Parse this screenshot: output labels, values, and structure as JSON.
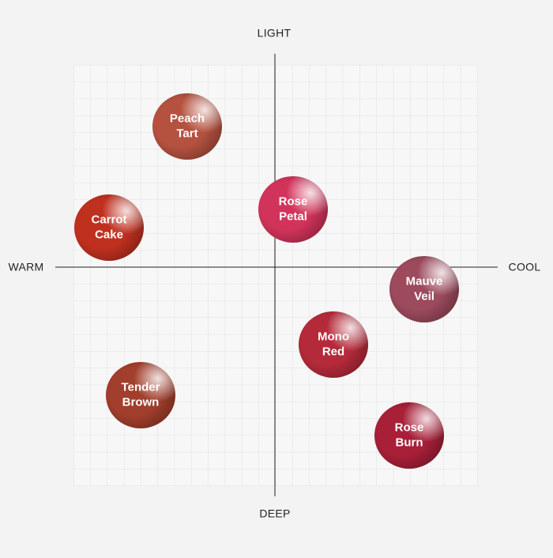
{
  "axes": {
    "top": "LIGHT",
    "bottom": "DEEP",
    "left": "WARM",
    "right": "COOL"
  },
  "swatches": [
    {
      "name": [
        "Peach",
        "Tart"
      ]
    },
    {
      "name": [
        "Carrot",
        "Cake"
      ]
    },
    {
      "name": [
        "Rose",
        "Petal"
      ]
    },
    {
      "name": [
        "Mauve",
        "Veil"
      ]
    },
    {
      "name": [
        "Mono",
        "Red"
      ]
    },
    {
      "name": [
        "Tender",
        "Brown"
      ]
    },
    {
      "name": [
        "Rose",
        "Burn"
      ]
    }
  ]
}
